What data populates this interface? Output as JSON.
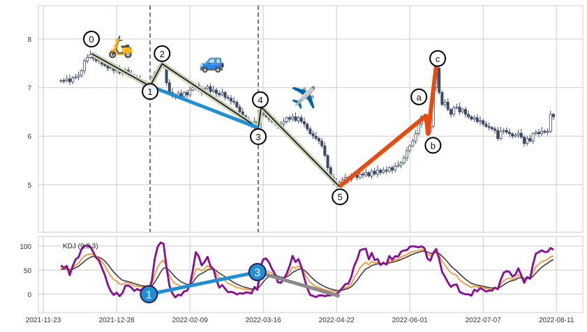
{
  "chart_data": [
    {
      "type": "candlestick",
      "panel": "price",
      "x_axis": "trading days",
      "x_ticks": [
        {
          "label": "2021-11-23",
          "index": 0
        },
        {
          "label": "2021-12-28",
          "index": 25
        },
        {
          "label": "2022-02-09",
          "index": 50
        },
        {
          "label": "2022-03-16",
          "index": 75
        },
        {
          "label": "2022-04-22",
          "index": 100
        },
        {
          "label": "2022-06-01",
          "index": 125
        },
        {
          "label": "2022-07-07",
          "index": 150
        },
        {
          "label": "2022-08-11",
          "index": 175
        }
      ],
      "xlim": [
        -1.7,
        184
      ],
      "ylim": [
        4.02,
        8.69
      ],
      "y_ticks": [
        5,
        6,
        7,
        8
      ],
      "grid": true,
      "candles_index_start": 6,
      "closes": [
        7.15,
        7.14,
        7.18,
        7.12,
        7.2,
        7.22,
        7.25,
        7.35,
        7.55,
        7.62,
        7.68,
        7.6,
        7.55,
        7.58,
        7.48,
        7.45,
        7.4,
        7.42,
        7.35,
        7.38,
        7.3,
        7.32,
        7.36,
        7.28,
        7.25,
        7.2,
        7.18,
        7.12,
        7.1,
        7.05,
        7.03,
        7.15,
        7.3,
        7.38,
        7.45,
        7.42,
        7.1,
        6.9,
        6.85,
        6.8,
        6.88,
        6.82,
        6.9,
        6.85,
        6.95,
        7.0,
        7.05,
        6.95,
        6.9,
        6.98,
        7.02,
        6.92,
        6.95,
        6.88,
        6.85,
        6.9,
        6.8,
        6.78,
        6.72,
        6.7,
        6.6,
        6.5,
        6.42,
        6.35,
        6.25,
        6.2,
        6.3,
        6.17,
        6.55,
        6.45,
        6.4,
        6.35,
        6.3,
        6.28,
        6.2,
        6.25,
        6.3,
        6.38,
        6.35,
        6.4,
        6.32,
        6.38,
        6.3,
        6.25,
        6.15,
        6.05,
        6.0,
        5.95,
        5.9,
        5.8,
        5.6,
        5.35,
        5.15,
        5.05,
        4.98,
        5.05,
        5.1,
        5.15,
        5.1,
        5.18,
        5.2,
        5.15,
        5.22,
        5.2,
        5.25,
        5.18,
        5.28,
        5.22,
        5.3,
        5.25,
        5.3,
        5.28,
        5.35,
        5.3,
        5.38,
        5.4,
        5.45,
        5.55,
        5.7,
        5.8,
        5.9,
        6.05,
        6.25,
        6.4,
        6.35,
        6.1,
        6.2,
        7.0,
        7.4,
        6.9,
        6.65,
        6.7,
        6.55,
        6.45,
        6.58,
        6.6,
        6.5,
        6.55,
        6.45,
        6.4,
        6.35,
        6.38,
        6.3,
        6.32,
        6.25,
        6.2,
        6.18,
        6.15,
        6.12,
        5.95,
        6.1,
        6.12,
        6.08,
        6.05,
        6.0,
        6.02,
        6.06,
        5.98,
        5.85,
        5.95,
        5.9,
        6.05,
        6.08,
        6.05,
        6.1,
        6.08,
        6.1,
        6.45,
        6.4
      ],
      "colors": {
        "candle": "#3b4a68",
        "grid": "#cccccc"
      },
      "vertical_markers": [
        36.4,
        73.3
      ],
      "waves": [
        {
          "style": "impulse",
          "color": "#000000",
          "halo": "#c9d1b0",
          "points": [
            [
              16.4,
              7.7
            ],
            [
              36.4,
              7.03
            ],
            [
              40.5,
              7.49
            ],
            [
              73.3,
              6.17
            ],
            [
              74.3,
              6.6
            ],
            [
              101,
              4.96
            ]
          ]
        },
        {
          "style": "trend",
          "color": "#1f8fd6",
          "points": [
            [
              36.4,
              7.03
            ],
            [
              73.3,
              6.17
            ]
          ]
        },
        {
          "style": "correction",
          "color": "#ea4a0c",
          "points": [
            [
              101,
              4.96
            ],
            [
              130.5,
              6.42
            ],
            [
              131.2,
              6.05
            ],
            [
              134,
              7.45
            ]
          ]
        }
      ],
      "wave_labels": [
        {
          "text": "0",
          "at": [
            16.4,
            8.0
          ]
        },
        {
          "text": "1",
          "at": [
            36.4,
            6.92
          ]
        },
        {
          "text": "2",
          "at": [
            40.5,
            7.7
          ]
        },
        {
          "text": "3",
          "at": [
            73.3,
            5.99
          ]
        },
        {
          "text": "4",
          "at": [
            74.0,
            6.75
          ]
        },
        {
          "text": "5",
          "at": [
            101.2,
            4.75
          ]
        },
        {
          "text": "a",
          "at": [
            128.1,
            6.81
          ]
        },
        {
          "text": "b",
          "at": [
            132.9,
            5.81
          ]
        },
        {
          "text": "c",
          "at": [
            134.5,
            7.6
          ]
        }
      ],
      "emojis": [
        {
          "icon": "scooter-icon",
          "glyph": "🛵",
          "at": [
            26.4,
            7.87
          ]
        },
        {
          "icon": "car-icon",
          "glyph": "🚙",
          "at": [
            57.6,
            7.57
          ]
        },
        {
          "icon": "airplane-icon",
          "glyph": "✈️",
          "at": [
            88.8,
            6.82
          ]
        }
      ]
    },
    {
      "type": "line",
      "panel": "indicator",
      "title": "KDJ (9,3,3)",
      "ylim": [
        -38,
        120
      ],
      "y_ticks": [
        0,
        50,
        100
      ],
      "series_colors": {
        "K": "#ff8c1a",
        "D": "#3c3c3c",
        "J": "#8b0a96"
      },
      "trend_lines": [
        {
          "color": "#1f8fd6",
          "points": [
            [
              36,
              0
            ],
            [
              73,
              46
            ]
          ]
        },
        {
          "color": "#8a8a8a",
          "points": [
            [
              73,
              46
            ],
            [
              101,
              -4
            ]
          ]
        }
      ],
      "markers": [
        {
          "text": "1",
          "at": [
            36,
            0
          ]
        },
        {
          "text": "3",
          "at": [
            73,
            46
          ]
        }
      ]
    }
  ]
}
